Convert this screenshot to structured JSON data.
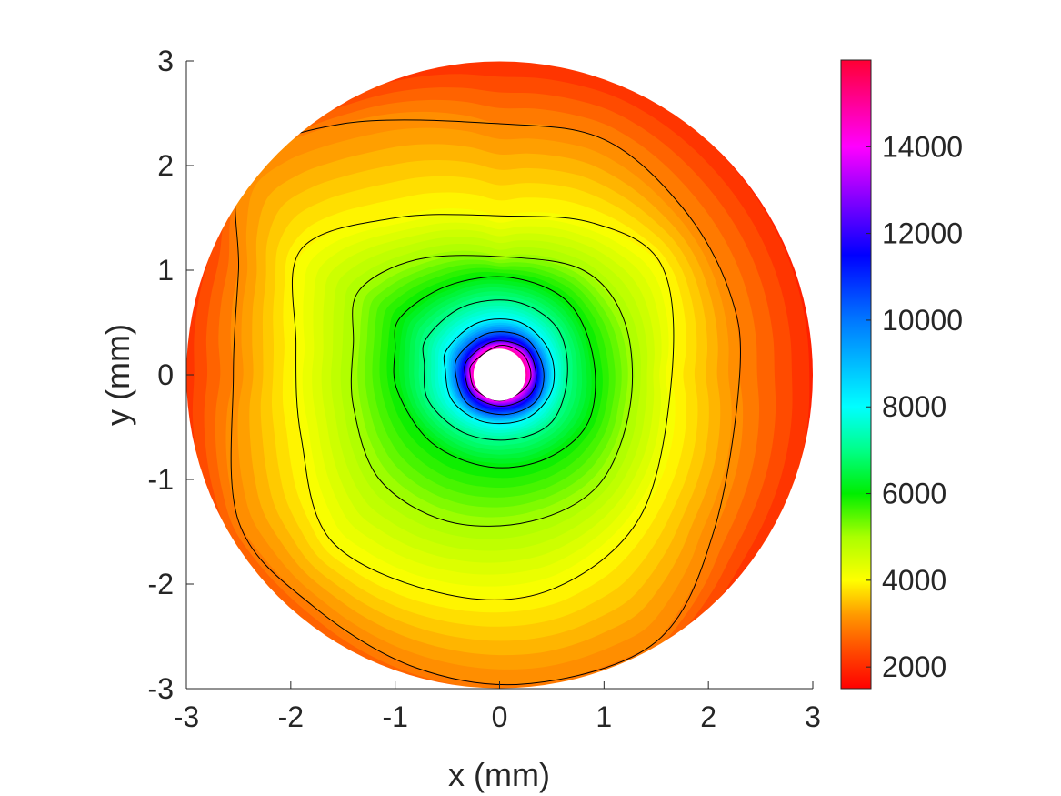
{
  "chart_data": {
    "type": "heatmap",
    "subtype": "filled-contour",
    "xlabel": "x (mm)",
    "ylabel": "y (mm)",
    "xlim": [
      -3,
      3
    ],
    "ylim": [
      -3,
      3
    ],
    "x_ticks": [
      -3,
      -2,
      -1,
      0,
      1,
      2,
      3
    ],
    "y_ticks": [
      -3,
      -2,
      -1,
      0,
      1,
      2,
      3
    ],
    "x_tick_labels": [
      "-3",
      "-2",
      "-1",
      "0",
      "1",
      "2",
      "3"
    ],
    "y_tick_labels": [
      "-3",
      "-2",
      "-1",
      "0",
      "1",
      "2",
      "3"
    ],
    "domain": {
      "outer_radius": 3.0,
      "inner_hole_radius": 0.25,
      "center": [
        0,
        0
      ]
    },
    "colorbar": {
      "limits": [
        1500,
        16000
      ],
      "ticks": [
        2000,
        4000,
        6000,
        8000,
        10000,
        12000,
        14000
      ],
      "tick_labels": [
        "2000",
        "4000",
        "6000",
        "8000",
        "10000",
        "12000",
        "14000"
      ],
      "colormap": [
        {
          "value": 1500,
          "color": "#ff0000"
        },
        {
          "value": 2300,
          "color": "#ff4400"
        },
        {
          "value": 3200,
          "color": "#ff9900"
        },
        {
          "value": 4000,
          "color": "#ffff00"
        },
        {
          "value": 5000,
          "color": "#aaff00"
        },
        {
          "value": 6000,
          "color": "#00ee00"
        },
        {
          "value": 7000,
          "color": "#00ff88"
        },
        {
          "value": 8000,
          "color": "#00ffff"
        },
        {
          "value": 10000,
          "color": "#0077ff"
        },
        {
          "value": 11500,
          "color": "#0000ff"
        },
        {
          "value": 12500,
          "color": "#6600ff"
        },
        {
          "value": 14000,
          "color": "#ff00ff"
        },
        {
          "value": 16000,
          "color": "#ff0033"
        }
      ]
    },
    "contour_lines": [
      {
        "level": 3000,
        "points": [
          [
            -2.45,
            2.0
          ],
          [
            -1.5,
            2.4
          ],
          [
            0,
            2.4
          ],
          [
            1.0,
            2.25
          ],
          [
            1.75,
            1.6
          ],
          [
            2.2,
            0.8
          ],
          [
            2.3,
            0
          ],
          [
            2.05,
            -1.5
          ],
          [
            1.5,
            -2.55
          ],
          [
            0.3,
            -2.95
          ],
          [
            -0.8,
            -2.8
          ],
          [
            -1.8,
            -2.2
          ],
          [
            -2.5,
            -1.4
          ],
          [
            -2.55,
            0
          ],
          [
            -2.5,
            1.0
          ]
        ]
      },
      {
        "level": 4000,
        "points": [
          [
            -1.9,
            1.2
          ],
          [
            -1.0,
            1.5
          ],
          [
            0,
            1.52
          ],
          [
            0.9,
            1.45
          ],
          [
            1.55,
            1.05
          ],
          [
            1.65,
            0
          ],
          [
            1.35,
            -1.35
          ],
          [
            0.5,
            -2.05
          ],
          [
            -0.5,
            -2.1
          ],
          [
            -1.6,
            -1.6
          ],
          [
            -1.9,
            -0.6
          ],
          [
            -1.95,
            0.3
          ]
        ]
      },
      {
        "level": 5000,
        "points": [
          [
            -1.35,
            0.8
          ],
          [
            -0.8,
            1.1
          ],
          [
            0,
            1.13
          ],
          [
            0.8,
            1.0
          ],
          [
            1.2,
            0.5
          ],
          [
            1.25,
            -0.3
          ],
          [
            0.95,
            -1.05
          ],
          [
            0.3,
            -1.4
          ],
          [
            -0.5,
            -1.4
          ],
          [
            -1.15,
            -1.0
          ],
          [
            -1.4,
            -0.3
          ],
          [
            -1.4,
            0.3
          ]
        ]
      },
      {
        "level": 6000,
        "points": [
          [
            -0.95,
            0.55
          ],
          [
            -0.5,
            0.85
          ],
          [
            0.1,
            0.93
          ],
          [
            0.65,
            0.7
          ],
          [
            0.9,
            0.15
          ],
          [
            0.85,
            -0.45
          ],
          [
            0.45,
            -0.8
          ],
          [
            -0.1,
            -0.88
          ],
          [
            -0.65,
            -0.65
          ],
          [
            -0.98,
            -0.15
          ],
          [
            -1.0,
            0.25
          ]
        ]
      },
      {
        "level": 7000,
        "points": [
          [
            -0.7,
            0.35
          ],
          [
            -0.35,
            0.65
          ],
          [
            0.15,
            0.7
          ],
          [
            0.55,
            0.45
          ],
          [
            0.65,
            0
          ],
          [
            0.5,
            -0.45
          ],
          [
            0.1,
            -0.62
          ],
          [
            -0.35,
            -0.55
          ],
          [
            -0.68,
            -0.25
          ],
          [
            -0.72,
            0.1
          ]
        ]
      },
      {
        "level": 8000,
        "points": [
          [
            -0.5,
            0.25
          ],
          [
            -0.2,
            0.5
          ],
          [
            0.2,
            0.5
          ],
          [
            0.48,
            0.22
          ],
          [
            0.5,
            -0.15
          ],
          [
            0.25,
            -0.42
          ],
          [
            -0.15,
            -0.45
          ],
          [
            -0.45,
            -0.25
          ],
          [
            -0.52,
            0.05
          ]
        ]
      },
      {
        "level": 10000,
        "points": [
          [
            -0.38,
            0.2
          ],
          [
            -0.1,
            0.4
          ],
          [
            0.25,
            0.35
          ],
          [
            0.42,
            0.05
          ],
          [
            0.35,
            -0.25
          ],
          [
            0.05,
            -0.38
          ],
          [
            -0.3,
            -0.28
          ],
          [
            -0.42,
            0
          ]
        ]
      },
      {
        "level": 12000,
        "points": [
          [
            -0.3,
            0.15
          ],
          [
            -0.05,
            0.32
          ],
          [
            0.25,
            0.25
          ],
          [
            0.35,
            0
          ],
          [
            0.28,
            -0.2
          ],
          [
            0.02,
            -0.3
          ],
          [
            -0.25,
            -0.2
          ],
          [
            -0.33,
            0
          ]
        ]
      },
      {
        "level": 14000,
        "points": [
          [
            -0.25,
            0.12
          ],
          [
            0,
            0.28
          ],
          [
            0.22,
            0.2
          ],
          [
            0.3,
            0
          ],
          [
            0.22,
            -0.15
          ],
          [
            0,
            -0.25
          ],
          [
            -0.22,
            -0.15
          ],
          [
            -0.28,
            0
          ]
        ]
      }
    ],
    "grid": false,
    "legend": "colorbar-right"
  }
}
